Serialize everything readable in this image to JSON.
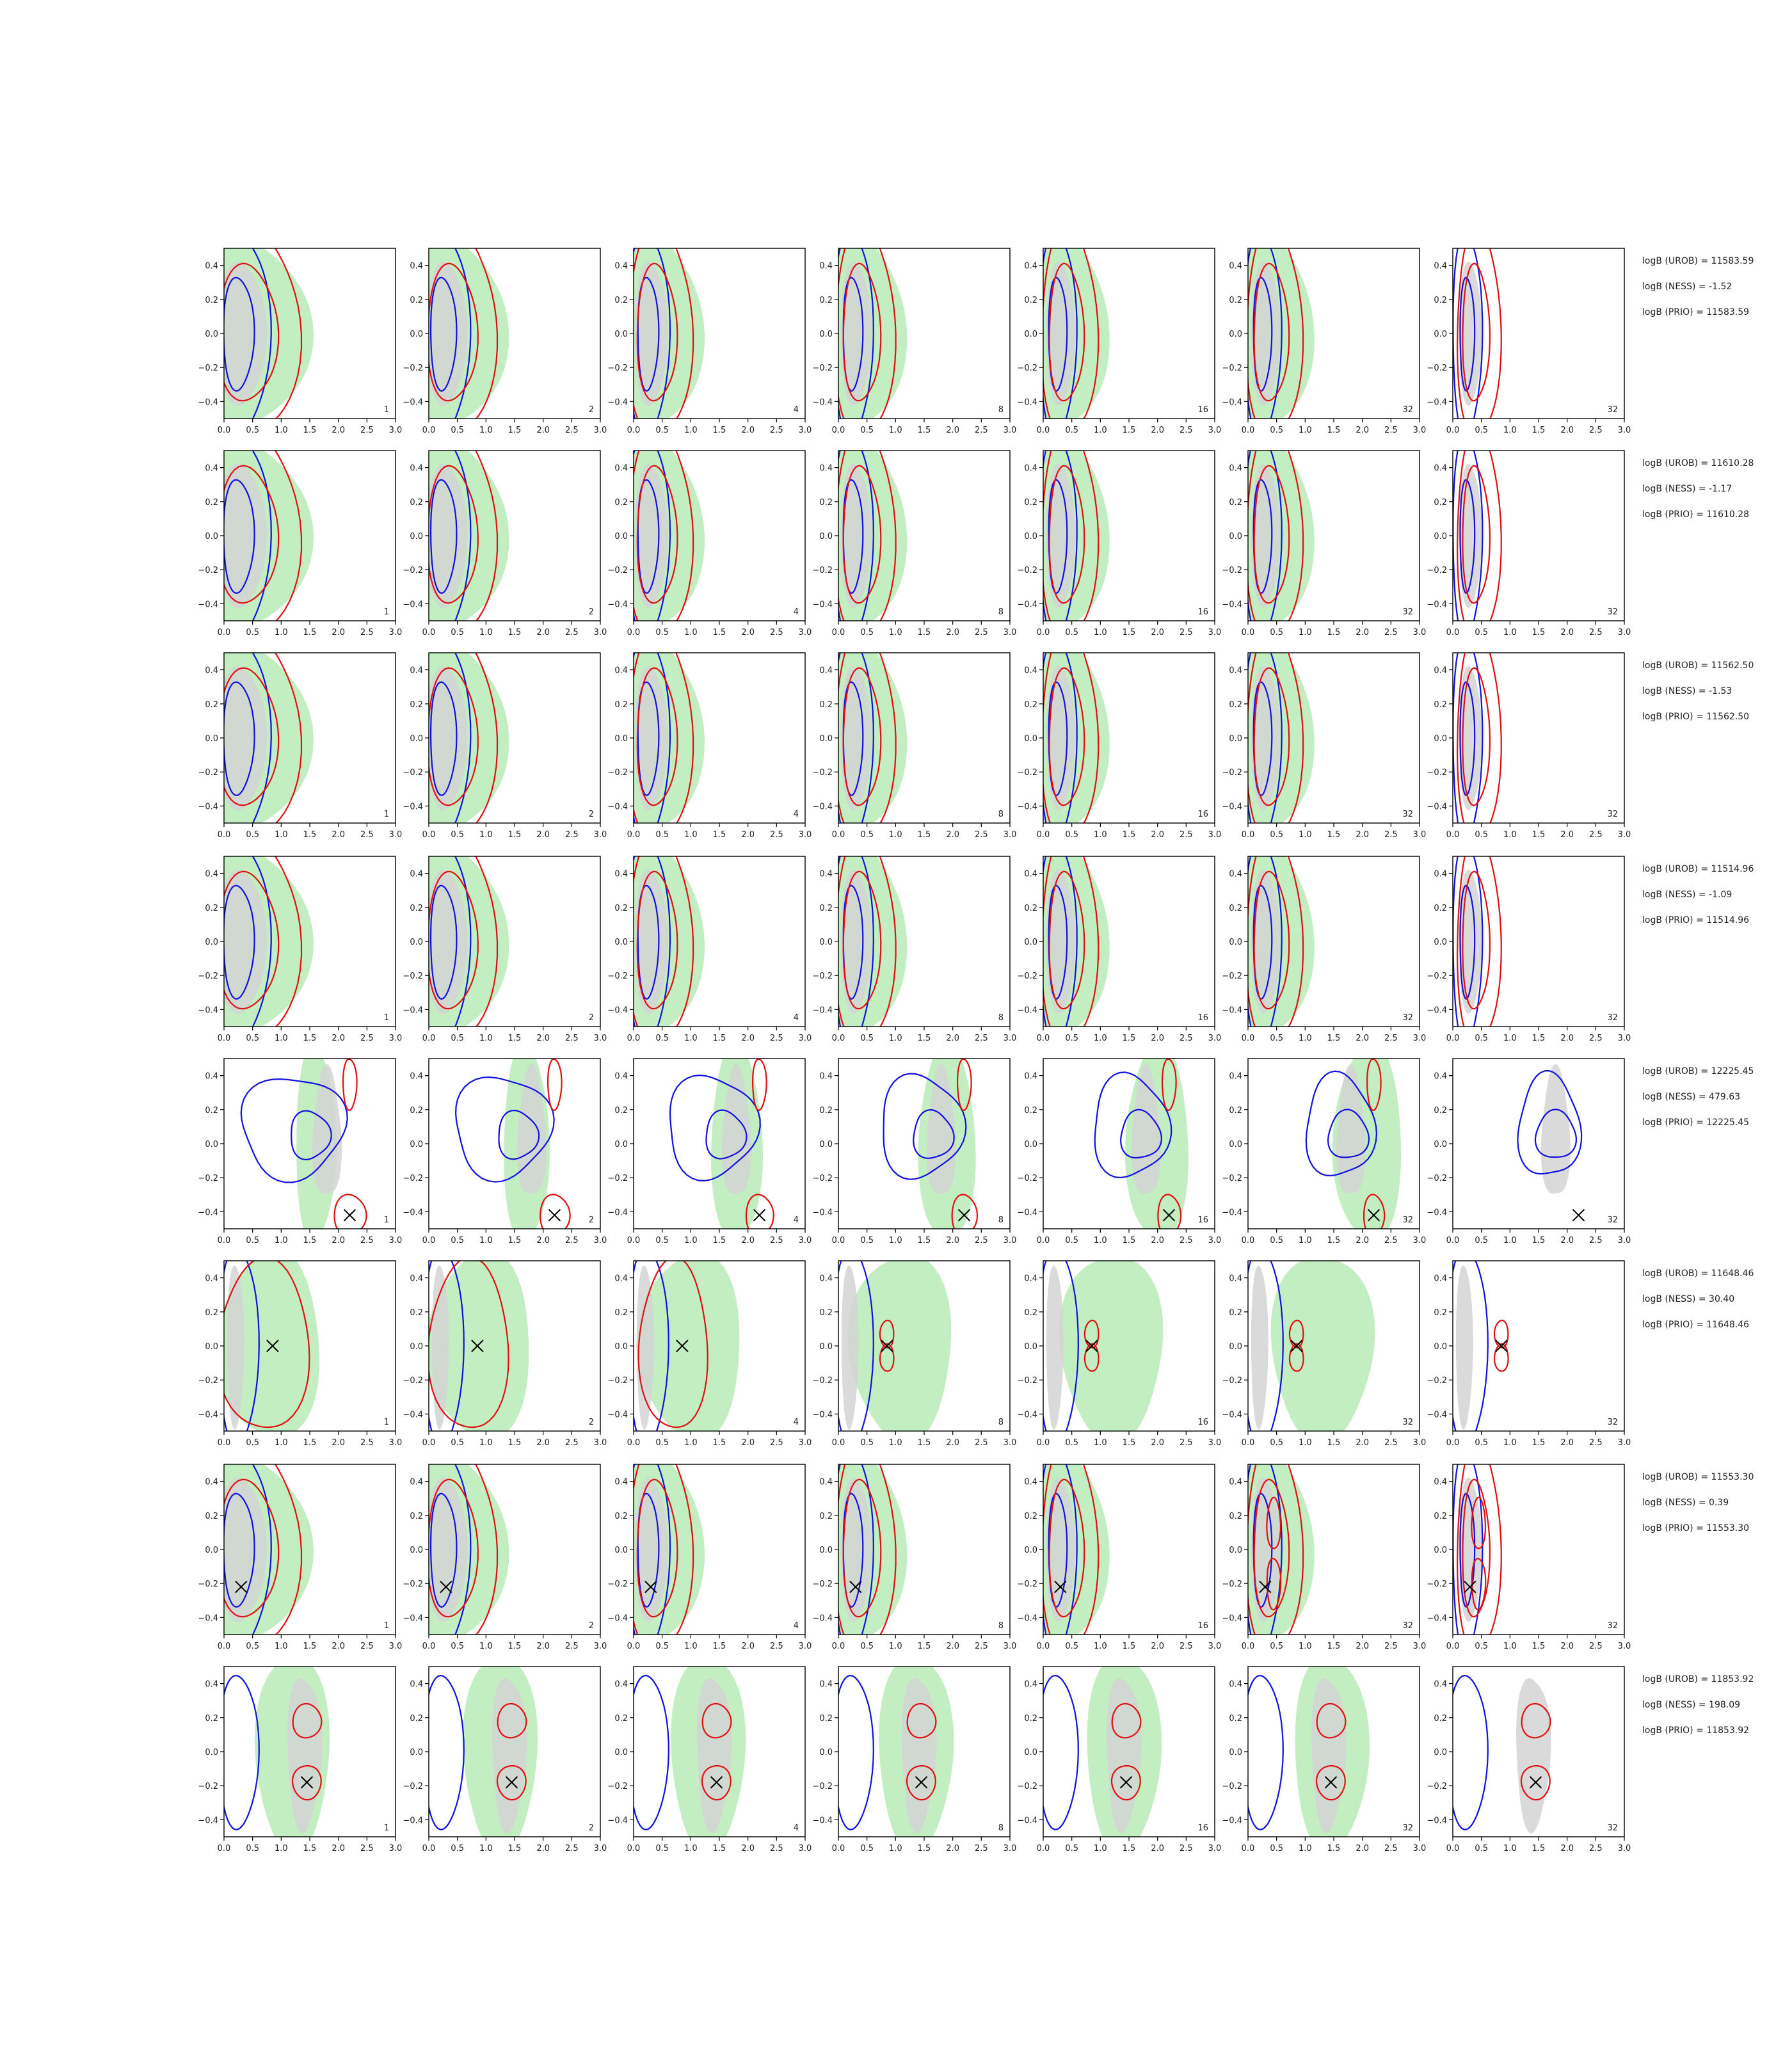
{
  "figure": {
    "columns": [
      {
        "label": "1"
      },
      {
        "label": "2"
      },
      {
        "label": "4"
      },
      {
        "label": "8"
      },
      {
        "label": "16"
      },
      {
        "label": "32"
      },
      {
        "label": "32"
      }
    ],
    "stats_format": [
      "logB (UROB) = ",
      "logB (NESS) = ",
      "logB (PRIO) = "
    ]
  },
  "chart_data": {
    "type": "contour",
    "xlim": [
      0.0,
      3.0
    ],
    "ylim": [
      -0.5,
      0.5
    ],
    "x_ticks": [
      "0.0",
      "0.5",
      "1.0",
      "1.5",
      "2.0",
      "2.5",
      "3.0"
    ],
    "y_ticks": [
      "0.4",
      "0.2",
      "0.0",
      "−0.2",
      "−0.4"
    ],
    "colors": {
      "blue": "#1010e0",
      "red": "#e01010",
      "green_fill": "#c2eec2",
      "gray_fill": "#d4d4d4"
    },
    "rows": [
      {
        "stats": {
          "urob": "11583.59",
          "ness": "-1.52",
          "prio": "11583.59"
        },
        "marker": null,
        "mode": "left"
      },
      {
        "stats": {
          "urob": "11610.28",
          "ness": "-1.17",
          "prio": "11610.28"
        },
        "marker": null,
        "mode": "left"
      },
      {
        "stats": {
          "urob": "11562.50",
          "ness": "-1.53",
          "prio": "11562.50"
        },
        "marker": null,
        "mode": "left"
      },
      {
        "stats": {
          "urob": "11514.96",
          "ness": "-1.09",
          "prio": "11514.96"
        },
        "marker": null,
        "mode": "left"
      },
      {
        "stats": {
          "urob": "12225.45",
          "ness": "479.63",
          "prio": "12225.45"
        },
        "marker": [
          2.2,
          -0.42
        ],
        "mode": "far"
      },
      {
        "stats": {
          "urob": "11648.46",
          "ness": "30.40",
          "prio": "11648.46"
        },
        "marker": [
          0.85,
          0.0
        ],
        "mode": "mid"
      },
      {
        "stats": {
          "urob": "11553.30",
          "ness": "0.39",
          "prio": "11553.30"
        },
        "marker": [
          0.3,
          -0.22
        ],
        "mode": "low"
      },
      {
        "stats": {
          "urob": "11853.92",
          "ness": "198.09",
          "prio": "11853.92"
        },
        "marker": [
          1.45,
          -0.18
        ],
        "mode": "twin"
      }
    ]
  }
}
